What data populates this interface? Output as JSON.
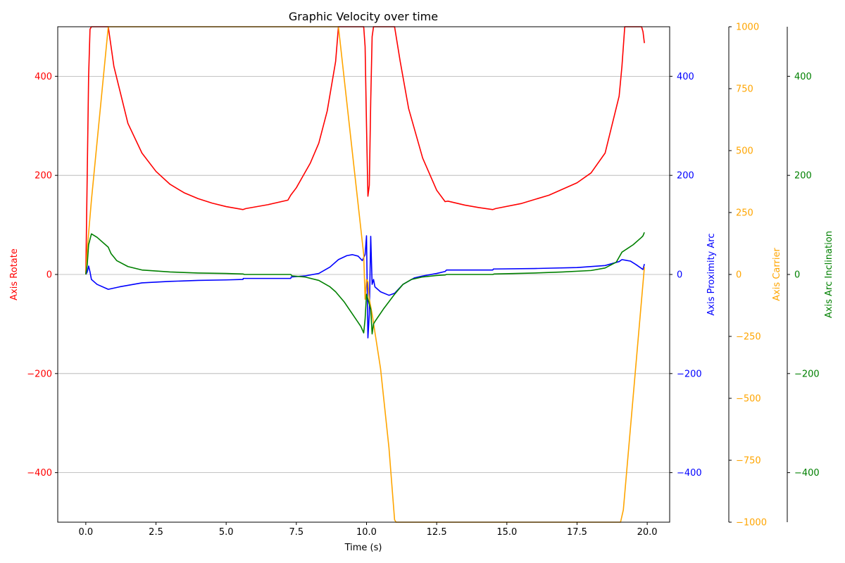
{
  "chart_data": {
    "type": "line",
    "title": "Graphic Velocity over time",
    "xlabel": "Time (s)",
    "xlim": [
      -1.0,
      20.8
    ],
    "xticks": [
      0.0,
      2.5,
      5.0,
      7.5,
      10.0,
      12.5,
      15.0,
      17.5,
      20.0
    ],
    "xtick_labels": [
      "0.0",
      "2.5",
      "5.0",
      "7.5",
      "10.0",
      "12.5",
      "15.0",
      "17.5",
      "20.0"
    ],
    "grid": "horizontal (left axis)",
    "axes": [
      {
        "id": "rotate",
        "label": "Axis Rotate",
        "side": "left",
        "color": "#ff0000",
        "ylim": [
          -500,
          500
        ],
        "ticks": [
          -400,
          -200,
          0,
          200,
          400
        ],
        "tick_labels": [
          "−400",
          "−200",
          "0",
          "200",
          "400"
        ]
      },
      {
        "id": "proximity",
        "label": "Axis Proximity Arc",
        "side": "right",
        "color": "#0000ff",
        "ylim": [
          -500,
          500
        ],
        "ticks": [
          -400,
          -200,
          0,
          200,
          400
        ],
        "tick_labels": [
          "−400",
          "−200",
          "0",
          "200",
          "400"
        ]
      },
      {
        "id": "carrier",
        "label": "Axis Carrier",
        "side": "right",
        "color": "#ffa500",
        "ylim": [
          -1000,
          1000
        ],
        "ticks": [
          -1000,
          -750,
          -500,
          -250,
          0,
          250,
          500,
          750,
          1000
        ],
        "tick_labels": [
          "−1000",
          "−750",
          "−500",
          "−250",
          "0",
          "250",
          "500",
          "750",
          "1000"
        ]
      },
      {
        "id": "inclination",
        "label": "Axis Arc Inclination",
        "side": "right",
        "color": "#008000",
        "ylim": [
          -500,
          500
        ],
        "ticks": [
          -400,
          -200,
          0,
          200,
          400
        ],
        "tick_labels": [
          "−400",
          "−200",
          "0",
          "200",
          "400"
        ]
      }
    ],
    "series": [
      {
        "axis": "rotate",
        "color": "#ff0000",
        "x": [
          0.0,
          0.05,
          0.1,
          0.15,
          0.2,
          0.8,
          1.0,
          1.5,
          2.0,
          2.5,
          3.0,
          3.5,
          4.0,
          4.5,
          5.0,
          5.5,
          5.6,
          5.7,
          6.5,
          7.2,
          7.3,
          7.5,
          8.0,
          8.3,
          8.6,
          8.9,
          9.0,
          9.9,
          9.95,
          10.0,
          10.05,
          10.1,
          10.15,
          10.2,
          10.25,
          10.3,
          10.5,
          11.0,
          11.2,
          11.5,
          12.0,
          12.5,
          12.8,
          12.9,
          13.5,
          14.0,
          14.5,
          14.6,
          15.5,
          16.5,
          17.5,
          18.0,
          18.5,
          19.0,
          19.1,
          19.2,
          19.8,
          19.85,
          19.9
        ],
        "y": [
          0,
          200,
          400,
          495,
          500,
          500,
          420,
          305,
          245,
          208,
          182,
          165,
          153,
          144,
          137,
          132,
          131,
          133,
          141,
          150,
          160,
          175,
          225,
          265,
          330,
          430,
          500,
          500,
          460,
          300,
          158,
          180,
          350,
          480,
          500,
          500,
          500,
          500,
          430,
          335,
          235,
          170,
          147,
          148,
          140,
          135,
          131,
          133,
          143,
          160,
          185,
          205,
          245,
          360,
          420,
          500,
          500,
          490,
          467
        ]
      },
      {
        "axis": "proximity",
        "color": "#0000ff",
        "x": [
          0.0,
          0.05,
          0.1,
          0.15,
          0.2,
          0.4,
          0.8,
          1.2,
          2.0,
          3.0,
          4.0,
          5.0,
          5.6,
          5.61,
          7.3,
          7.32,
          7.8,
          8.3,
          8.7,
          9.0,
          9.3,
          9.5,
          9.7,
          9.85,
          9.95,
          10.0,
          10.05,
          10.1,
          10.15,
          10.2,
          10.25,
          10.3,
          10.5,
          10.8,
          11.0,
          11.3,
          11.7,
          12.0,
          12.5,
          12.8,
          12.85,
          14.5,
          14.52,
          16.0,
          17.5,
          18.5,
          19.0,
          19.1,
          19.4,
          19.6,
          19.8,
          19.85,
          19.9
        ],
        "y": [
          0,
          5,
          17,
          5,
          -10,
          -20,
          -30,
          -25,
          -17,
          -14,
          -12,
          -11,
          -10,
          -8,
          -8,
          -5,
          -3,
          2,
          15,
          30,
          38,
          40,
          37,
          28,
          40,
          78,
          -128,
          -80,
          77,
          -20,
          -10,
          -25,
          -35,
          -42,
          -38,
          -20,
          -7,
          -3,
          2,
          6,
          9,
          9,
          11,
          12,
          14,
          18,
          26,
          30,
          27,
          20,
          12,
          10,
          21
        ]
      },
      {
        "axis": "carrier",
        "color": "#ffa500",
        "x": [
          0.0,
          0.05,
          0.2,
          0.8,
          0.85,
          4.0,
          5.6,
          7.3,
          8.9,
          9.0,
          9.9,
          9.95,
          10.0,
          10.05,
          10.1,
          10.2,
          10.5,
          10.8,
          11.0,
          11.05,
          12.8,
          14.5,
          17.0,
          19.05,
          19.15,
          19.9
        ],
        "y": [
          0,
          100,
          300,
          1000,
          1000,
          1000,
          1000,
          1000,
          1000,
          1000,
          80,
          -100,
          -20,
          -30,
          -100,
          -160,
          -380,
          -700,
          -990,
          -1000,
          -1000,
          -1000,
          -1000,
          -1000,
          -950,
          30
        ]
      },
      {
        "axis": "inclination",
        "color": "#008000",
        "x": [
          0.0,
          0.05,
          0.1,
          0.2,
          0.4,
          0.8,
          0.9,
          1.1,
          1.5,
          2.0,
          3.0,
          4.0,
          5.0,
          5.6,
          5.65,
          7.3,
          7.35,
          7.8,
          8.3,
          8.7,
          8.9,
          9.2,
          9.5,
          9.8,
          9.9,
          9.95,
          10.0,
          10.05,
          10.1,
          10.15,
          10.2,
          10.25,
          10.3,
          10.6,
          11.0,
          11.3,
          11.6,
          12.0,
          12.5,
          12.8,
          12.85,
          14.5,
          14.55,
          16.0,
          17.0,
          18.0,
          18.5,
          18.9,
          19.1,
          19.5,
          19.8,
          19.85,
          19.9
        ],
        "y": [
          0,
          20,
          60,
          82,
          75,
          55,
          42,
          28,
          16,
          9,
          5,
          3,
          2,
          1,
          0,
          0,
          -3,
          -5,
          -12,
          -25,
          -35,
          -55,
          -80,
          -105,
          -118,
          -90,
          -40,
          -50,
          -60,
          -70,
          -120,
          -100,
          -95,
          -70,
          -40,
          -20,
          -10,
          -5,
          -2,
          -1,
          0,
          0,
          1,
          3,
          5,
          8,
          13,
          25,
          45,
          60,
          75,
          78,
          85
        ]
      }
    ]
  }
}
